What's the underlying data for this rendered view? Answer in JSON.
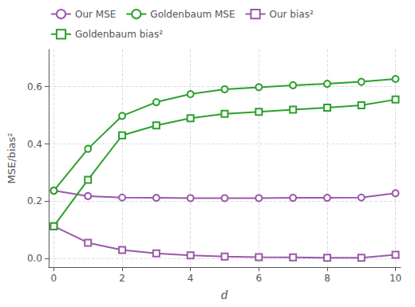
{
  "chart_data": {
    "type": "line",
    "xlabel": "d",
    "ylabel": "MSE/bias²",
    "x": [
      0,
      1,
      2,
      3,
      4,
      5,
      6,
      7,
      8,
      9,
      10
    ],
    "series": [
      {
        "name": "Our MSE",
        "color": "#9b59a8",
        "marker": "circle",
        "line_style": "solid",
        "values": [
          0.237,
          0.218,
          0.213,
          0.212,
          0.211,
          0.211,
          0.211,
          0.212,
          0.212,
          0.213,
          0.228
        ]
      },
      {
        "name": "Goldenbaum MSE",
        "color": "#2ca02c",
        "marker": "circle",
        "line_style": "solid",
        "values": [
          0.237,
          0.383,
          0.498,
          0.546,
          0.574,
          0.591,
          0.598,
          0.605,
          0.61,
          0.617,
          0.627
        ]
      },
      {
        "name": "Our bias²",
        "color": "#9b59a8",
        "marker": "square",
        "line_style": "solid",
        "values": [
          0.113,
          0.055,
          0.03,
          0.018,
          0.011,
          0.007,
          0.005,
          0.004,
          0.003,
          0.003,
          0.013
        ]
      },
      {
        "name": "Goldenbaum bias²",
        "color": "#2ca02c",
        "marker": "square",
        "line_style": "solid",
        "values": [
          0.113,
          0.275,
          0.43,
          0.465,
          0.49,
          0.505,
          0.512,
          0.52,
          0.527,
          0.535,
          0.555
        ]
      }
    ],
    "xlim": [
      -0.15,
      10.15
    ],
    "ylim": [
      -0.03,
      0.73
    ],
    "xticks": [
      0,
      2,
      4,
      6,
      8,
      10
    ],
    "yticks": [
      {
        "value": 0.0,
        "label": "0.0"
      },
      0.2,
      0.4,
      0.6
    ],
    "grid": true,
    "legend": "upper left"
  }
}
